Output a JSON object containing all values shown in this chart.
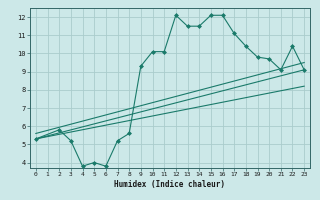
{
  "title": "",
  "xlabel": "Humidex (Indice chaleur)",
  "ylabel": "",
  "bg_color": "#cce8e8",
  "grid_color": "#aacccc",
  "line_color": "#1a7a6a",
  "xlim": [
    -0.5,
    23.5
  ],
  "ylim": [
    3.7,
    12.5
  ],
  "yticks": [
    4,
    5,
    6,
    7,
    8,
    9,
    10,
    11,
    12
  ],
  "xticks": [
    0,
    1,
    2,
    3,
    4,
    5,
    6,
    7,
    8,
    9,
    10,
    11,
    12,
    13,
    14,
    15,
    16,
    17,
    18,
    19,
    20,
    21,
    22,
    23
  ],
  "series1_x": [
    0,
    2,
    3,
    4,
    5,
    6,
    7,
    8,
    9,
    10,
    11,
    12,
    13,
    14,
    15,
    16,
    17,
    18,
    19,
    20,
    21,
    22,
    23
  ],
  "series1_y": [
    5.3,
    5.8,
    5.2,
    3.8,
    4.0,
    3.8,
    5.2,
    5.6,
    9.3,
    10.1,
    10.1,
    12.1,
    11.5,
    11.5,
    12.1,
    12.1,
    11.1,
    10.4,
    9.8,
    9.7,
    9.1,
    10.4,
    9.1
  ],
  "series2_x": [
    0,
    23
  ],
  "series2_y": [
    5.3,
    9.1
  ],
  "series3_x": [
    0,
    23
  ],
  "series3_y": [
    5.6,
    9.5
  ],
  "series4_x": [
    0,
    23
  ],
  "series4_y": [
    5.3,
    8.2
  ]
}
